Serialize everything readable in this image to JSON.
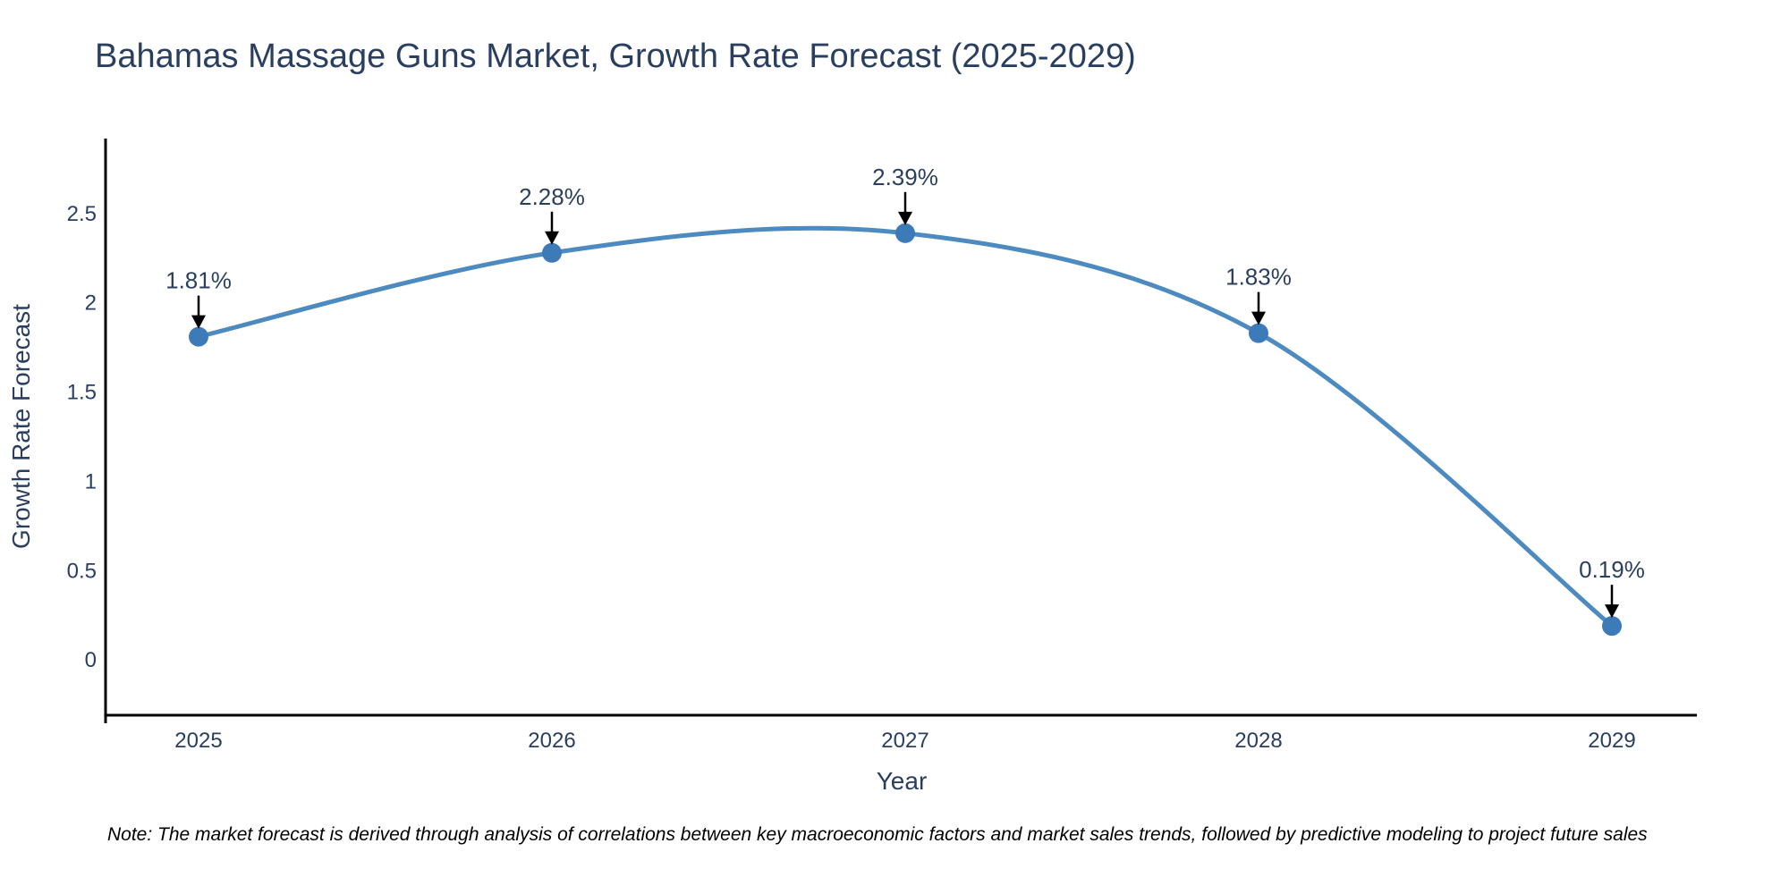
{
  "title": "Bahamas Massage Guns Market, Growth Rate Forecast (2025-2029)",
  "note": "Note: The market forecast is derived through analysis of correlations between key macroeconomic factors and market sales trends, followed by predictive modeling to project future sales",
  "chart_data": {
    "type": "line",
    "title": "Bahamas Massage Guns Market, Growth Rate Forecast (2025-2029)",
    "xlabel": "Year",
    "ylabel": "Growth Rate Forecast",
    "categories": [
      "2025",
      "2026",
      "2027",
      "2028",
      "2029"
    ],
    "series": [
      {
        "name": "Growth Rate Forecast",
        "values": [
          1.81,
          2.28,
          2.39,
          1.83,
          0.19
        ]
      }
    ],
    "point_labels": [
      "1.81%",
      "2.28%",
      "2.39%",
      "1.83%",
      "0.19%"
    ],
    "ytick_labels": [
      "0",
      "0.5",
      "1",
      "1.5",
      "2",
      "2.5"
    ],
    "ytick_values": [
      0,
      0.5,
      1,
      1.5,
      2,
      2.5
    ],
    "ylim": [
      -0.31,
      2.92
    ],
    "grid": false,
    "legend": "none",
    "line_shape": "spline",
    "annotation_style": "value label with downward black arrow above each marker",
    "colors": {
      "line": "#4c8ac0",
      "marker": "#3d7ab8",
      "axis": "#000000",
      "chart_text": "#2a3f5f",
      "annotation_text": "#2a3f5f",
      "arrow": "#000000",
      "note_text": "#000000"
    }
  }
}
